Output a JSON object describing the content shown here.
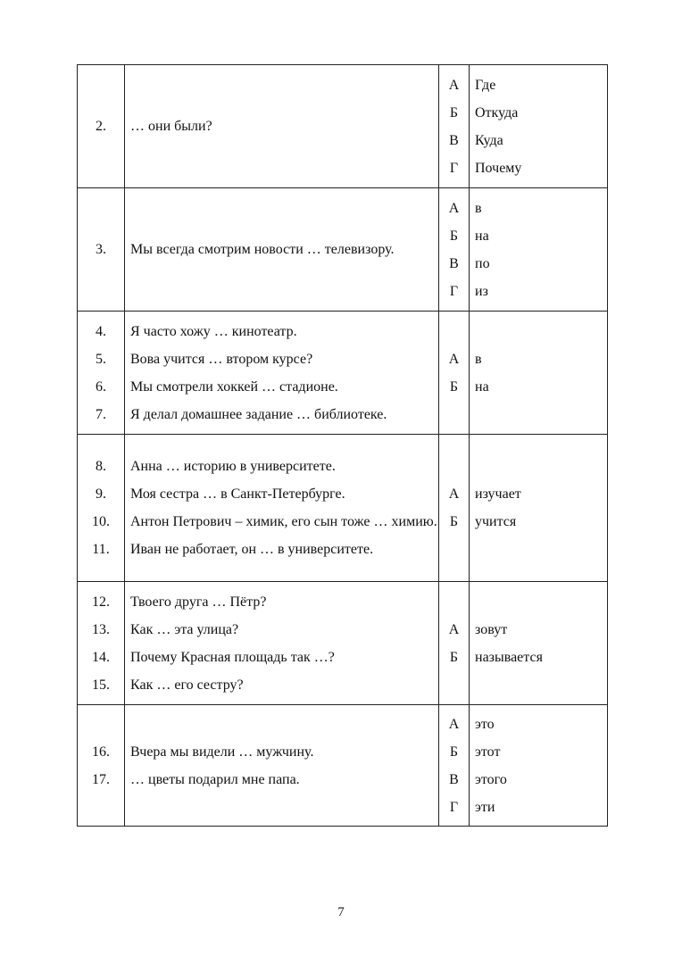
{
  "rows": [
    {
      "items": [
        {
          "num": "2.",
          "text": "… они были?"
        }
      ],
      "options": [
        {
          "letter": "А",
          "text": "Где"
        },
        {
          "letter": "Б",
          "text": "Откуда"
        },
        {
          "letter": "В",
          "text": "Куда"
        },
        {
          "letter": "Г",
          "text": "Почему"
        }
      ]
    },
    {
      "items": [
        {
          "num": "3.",
          "text": "Мы всегда смотрим новости … телевизору."
        }
      ],
      "options": [
        {
          "letter": "А",
          "text": "в"
        },
        {
          "letter": "Б",
          "text": "на"
        },
        {
          "letter": "В",
          "text": "по"
        },
        {
          "letter": "Г",
          "text": "из"
        }
      ]
    },
    {
      "items": [
        {
          "num": "4.",
          "text": "Я часто хожу … кинотеатр."
        },
        {
          "num": "5.",
          "text": "Вова учится … втором курсе?"
        },
        {
          "num": "6.",
          "text": "Мы смотрели хоккей … стадионе."
        },
        {
          "num": "7.",
          "text": "Я делал домашнее задание … библиотеке."
        }
      ],
      "options": [
        {
          "letter": "А",
          "text": "в"
        },
        {
          "letter": "Б",
          "text": "на"
        }
      ]
    },
    {
      "items": [
        {
          "num": "8.",
          "text": "Анна … историю в университете."
        },
        {
          "num": "9.",
          "text": "Моя сестра … в Санкт-Петербурге."
        },
        {
          "num": "10.",
          "text": "Антон Петрович – химик, его сын тоже … химию."
        },
        {
          "num": "11.",
          "text": "Иван не работает, он … в университете."
        }
      ],
      "options": [
        {
          "letter": "А",
          "text": "изучает"
        },
        {
          "letter": "Б",
          "text": "учится"
        }
      ]
    },
    {
      "items": [
        {
          "num": "12.",
          "text": "Твоего друга … Пётр?"
        },
        {
          "num": "13.",
          "text": "Как … эта улица?"
        },
        {
          "num": "14.",
          "text": "Почему Красная площадь так …?"
        },
        {
          "num": "15.",
          "text": "Как … его сестру?"
        }
      ],
      "options": [
        {
          "letter": "А",
          "text": "зовут"
        },
        {
          "letter": "Б",
          "text": "называется"
        }
      ]
    },
    {
      "items": [
        {
          "num": "16.",
          "text": "Вчера мы видели … мужчину."
        },
        {
          "num": "17.",
          "text": "… цветы подарил мне папа."
        }
      ],
      "options": [
        {
          "letter": "А",
          "text": "это"
        },
        {
          "letter": "Б",
          "text": "этот"
        },
        {
          "letter": "В",
          "text": "этого"
        },
        {
          "letter": "Г",
          "text": "эти"
        }
      ]
    }
  ],
  "page_number": "7"
}
